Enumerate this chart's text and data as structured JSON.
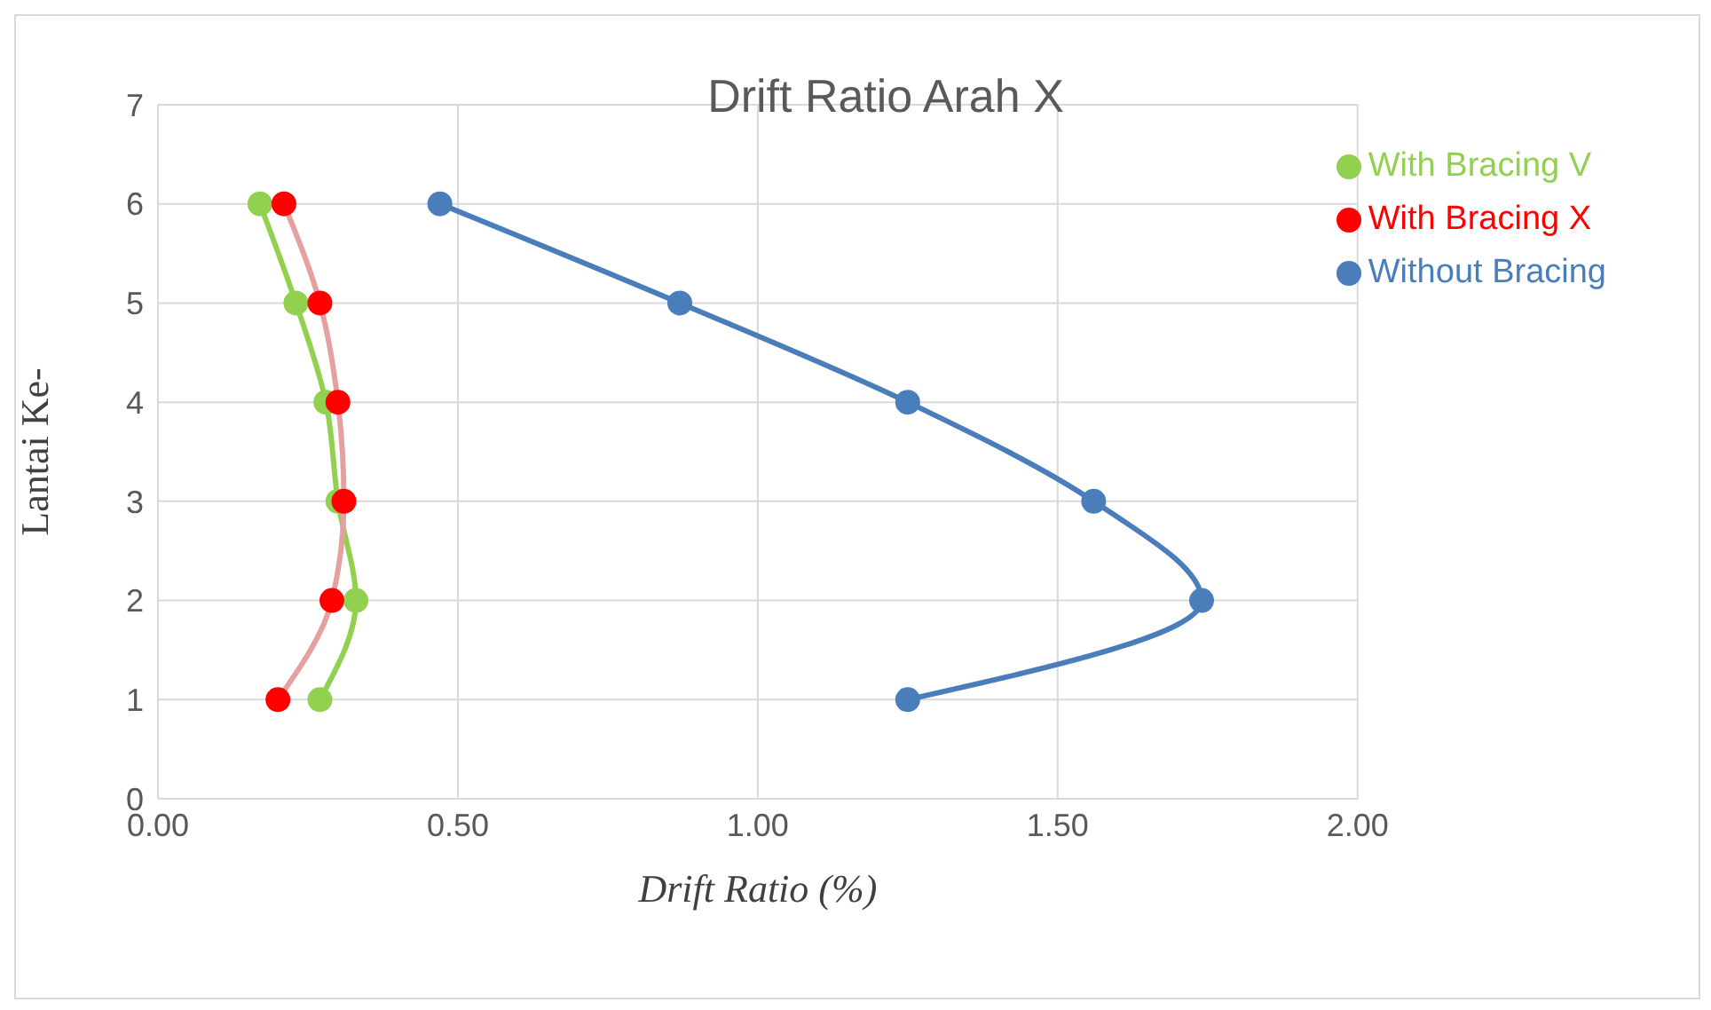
{
  "chart_data": {
    "type": "line",
    "title": "Drift Ratio Arah X",
    "xlabel": "Drift Ratio (%)",
    "ylabel": "Lantai Ke-",
    "series": [
      {
        "name": "Without Bracing",
        "color": "#4a7ebb",
        "x": [
          1.25,
          1.74,
          1.56,
          1.25,
          0.87,
          0.47
        ],
        "values": [
          1,
          2,
          3,
          4,
          5,
          6
        ]
      },
      {
        "name": "With Bracing X",
        "color": "#ff0000",
        "x": [
          0.2,
          0.29,
          0.31,
          0.3,
          0.27,
          0.21
        ],
        "values": [
          1,
          2,
          3,
          4,
          5,
          6
        ]
      },
      {
        "name": "With Bracing V",
        "color": "#92d050",
        "x": [
          0.27,
          0.33,
          0.3,
          0.28,
          0.23,
          0.17
        ],
        "values": [
          1,
          2,
          3,
          4,
          5,
          6
        ]
      }
    ],
    "xlim": [
      0,
      2
    ],
    "xticks": [
      {
        "value": 0,
        "label": "0.00"
      },
      {
        "value": 0.5,
        "label": "0.50"
      },
      {
        "value": 1,
        "label": "1.00"
      },
      {
        "value": 1.5,
        "label": "1.50"
      },
      {
        "value": 2,
        "label": "2.00"
      }
    ],
    "ylim": [
      0,
      7
    ],
    "yticks": [
      0,
      1,
      2,
      3,
      4,
      5,
      6,
      7
    ],
    "grid": true,
    "legend": "top right",
    "marker": "circle",
    "line_style": "solid"
  }
}
